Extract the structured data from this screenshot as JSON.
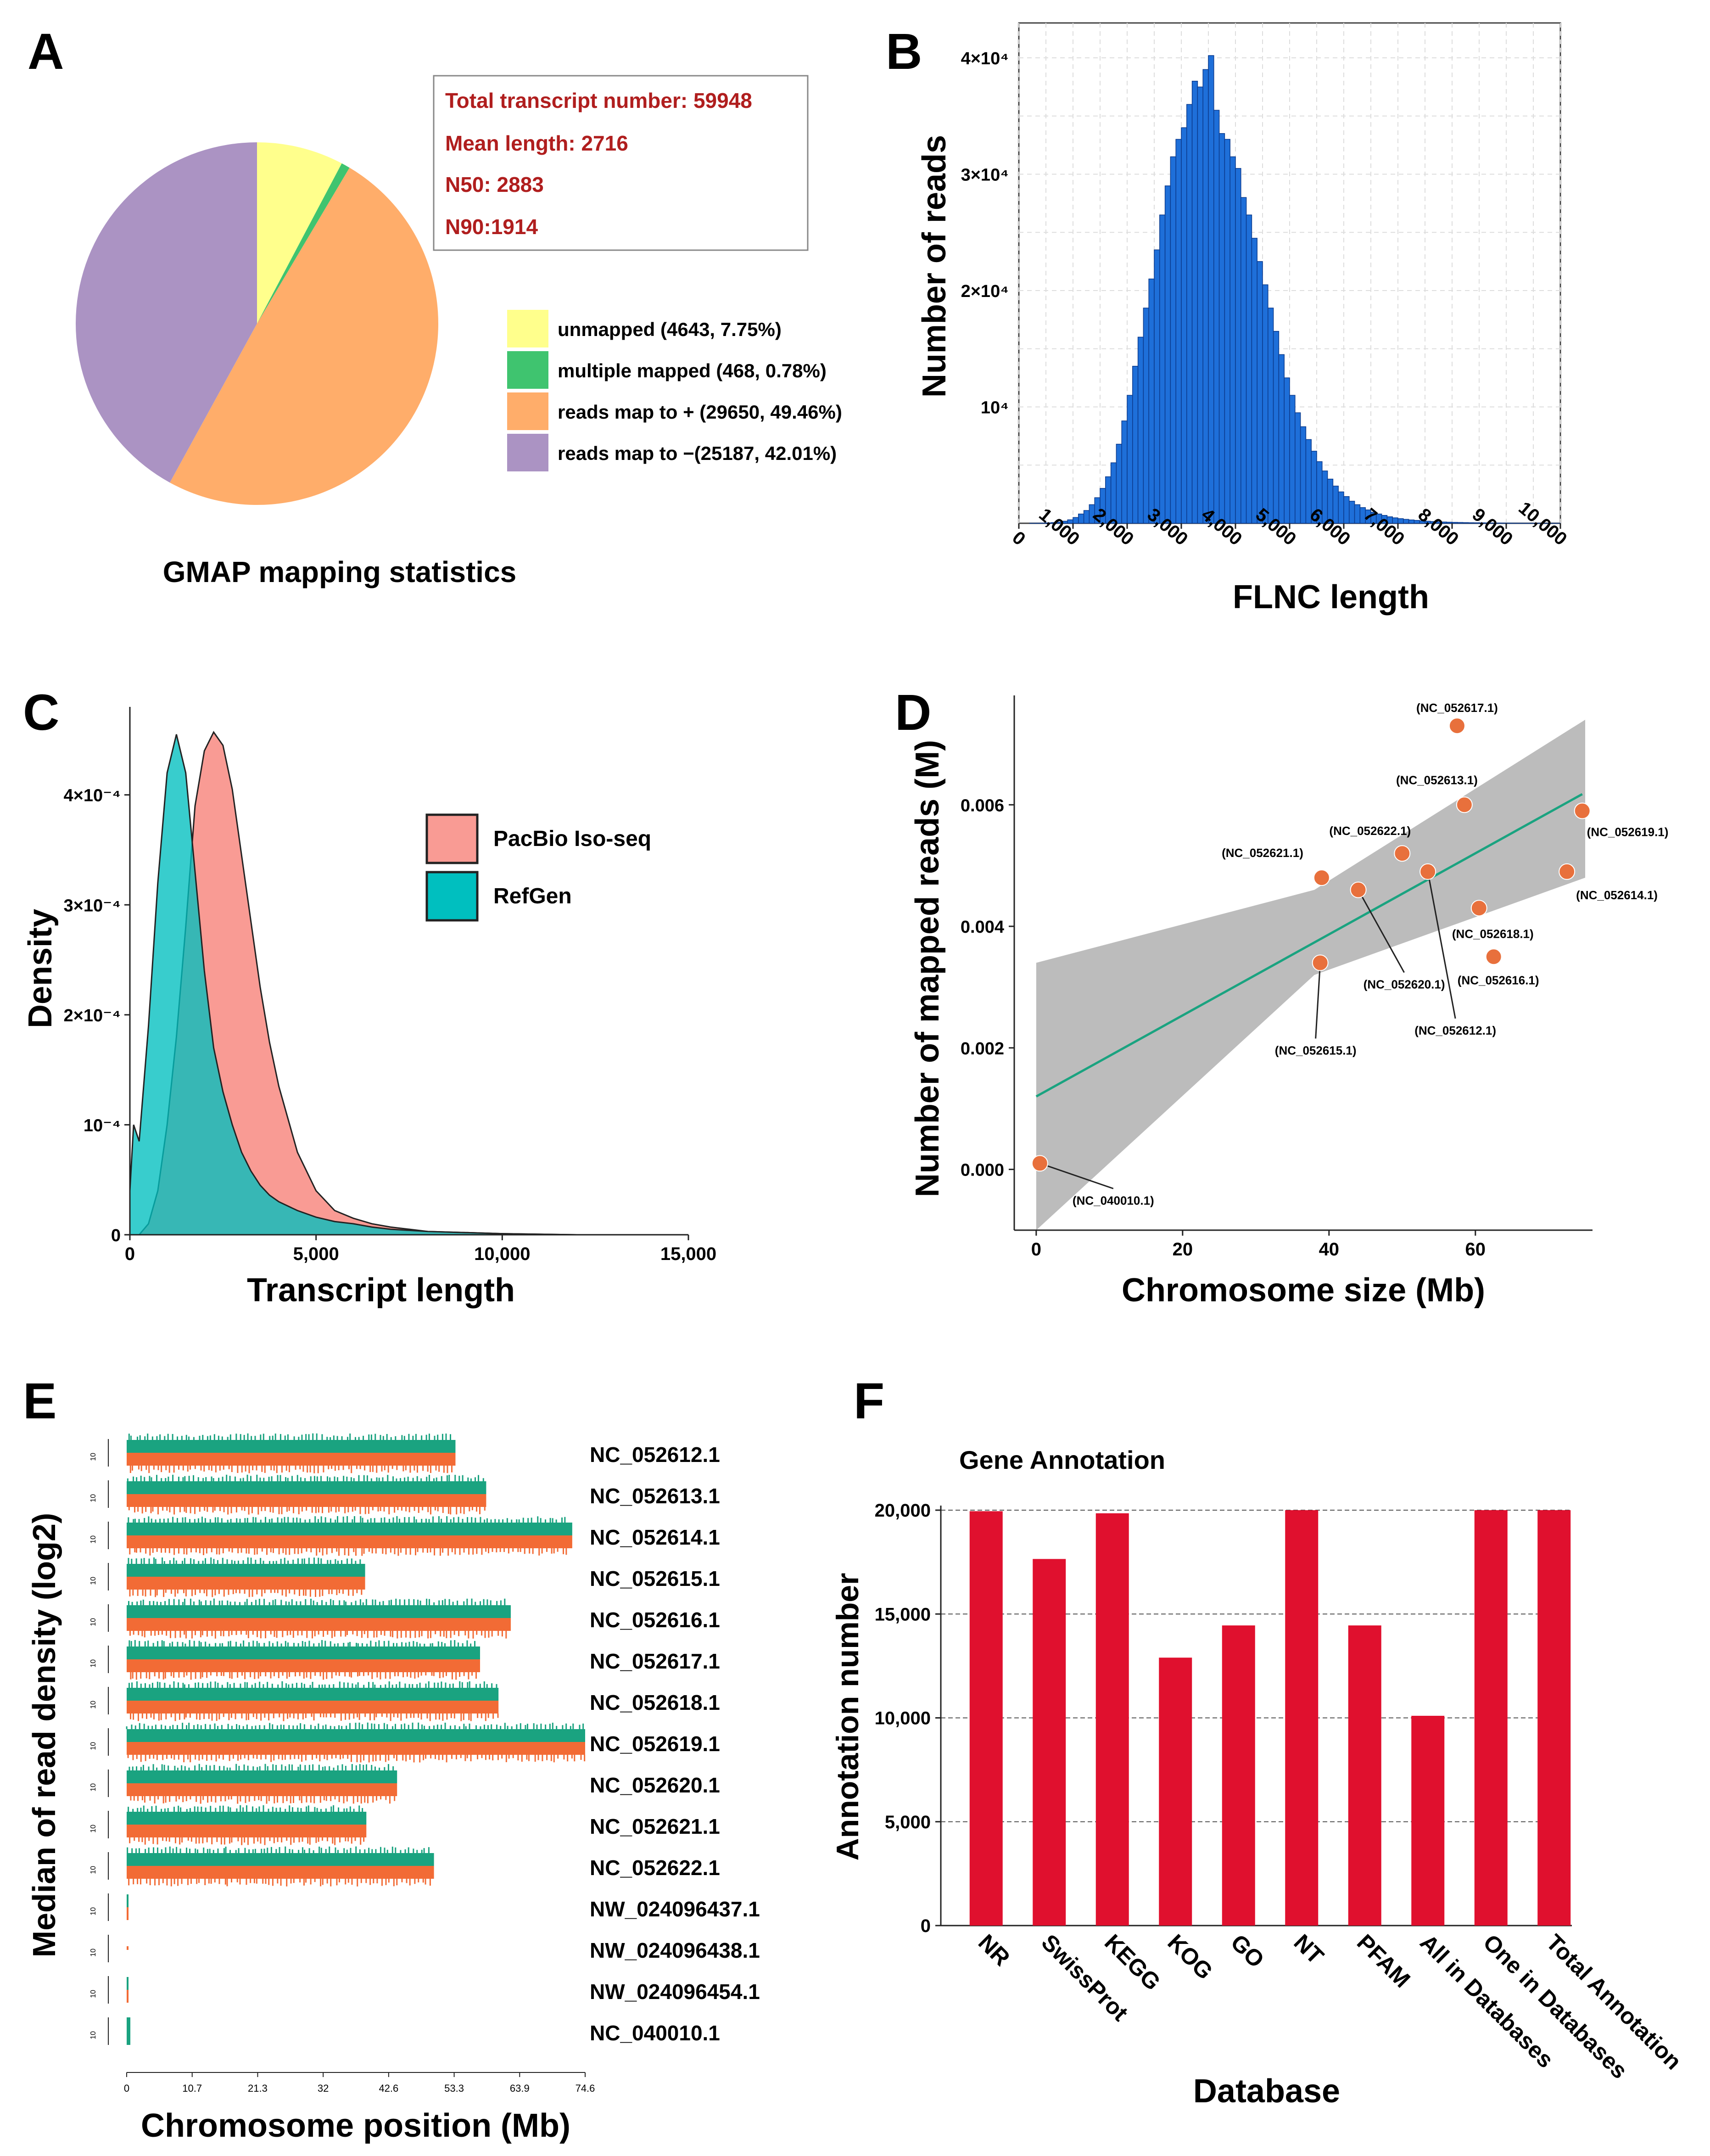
{
  "panels": {
    "A": "A",
    "B": "B",
    "C": "C",
    "D": "D",
    "E": "E",
    "F": "F"
  },
  "panel_a": {
    "stats": [
      "Total transcript number: 59948",
      "Mean length: 2716",
      "N50: 2883",
      "N90:1914"
    ],
    "stats_color": "#b01e1e",
    "caption": "GMAP mapping statistics"
  },
  "chart_data": [
    {
      "panel": "A",
      "type": "pie",
      "labels": [
        "unmapped (4643, 7.75%)",
        "multiple mapped (468, 0.78%)",
        "reads map to + (29650, 49.46%)",
        "reads map to −(25187, 42.01%)"
      ],
      "values": [
        4643,
        468,
        29650,
        25187
      ],
      "percents": [
        7.75,
        0.78,
        49.46,
        42.01
      ],
      "colors": [
        "#ffff8c",
        "#3fc46f",
        "#ffad6a",
        "#ab93c3"
      ],
      "title": "GMAP mapping statistics"
    },
    {
      "panel": "B",
      "type": "bar",
      "xlabel": "FLNC length",
      "ylabel": "Number of reads",
      "xlim": [
        0,
        10000
      ],
      "ylim": [
        0,
        43000
      ],
      "xticks": [
        "0",
        "1,000",
        "2,000",
        "3,000",
        "4,000",
        "5,000",
        "6,000",
        "7,000",
        "8,000",
        "9,000",
        "10,000"
      ],
      "yticks": [
        {
          "value": 10000,
          "label": "10⁴"
        },
        {
          "value": 20000,
          "label": "2×10⁴"
        },
        {
          "value": 30000,
          "label": "3×10⁴"
        },
        {
          "value": 40000,
          "label": "4×10⁴"
        }
      ],
      "bin_width": 100,
      "values": [
        0,
        0,
        5,
        10,
        20,
        40,
        60,
        100,
        180,
        300,
        500,
        800,
        1100,
        1600,
        2200,
        3000,
        4000,
        5200,
        6800,
        8800,
        11000,
        13500,
        16000,
        18500,
        21000,
        23500,
        26500,
        29000,
        31500,
        33000,
        34000,
        36000,
        38000,
        37500,
        39000,
        40200,
        35500,
        33500,
        33000,
        31500,
        30500,
        28000,
        26500,
        24500,
        22500,
        20500,
        18500,
        16500,
        14500,
        12500,
        11000,
        9500,
        8300,
        7200,
        6200,
        5300,
        4500,
        3800,
        3200,
        2700,
        2300,
        1900,
        1600,
        1350,
        1150,
        950,
        800,
        680,
        560,
        470,
        400,
        340,
        290,
        250,
        210,
        180,
        150,
        130,
        110,
        95,
        80,
        70,
        60,
        50,
        45,
        40,
        35,
        30,
        25,
        20,
        15,
        12,
        10,
        8,
        6,
        5,
        4,
        3,
        2,
        1
      ],
      "color": "#1e6fd9"
    },
    {
      "panel": "C",
      "type": "area",
      "xlabel": "Transcript length",
      "ylabel": "Density",
      "xlim": [
        0,
        15000
      ],
      "ylim": [
        0,
        0.00048
      ],
      "xticks": [
        "0",
        "5,000",
        "10,000",
        "15,000"
      ],
      "yticks": [
        {
          "value": 0,
          "label": "0"
        },
        {
          "value": 0.0001,
          "label": "10⁻⁴"
        },
        {
          "value": 0.0002,
          "label": "2×10⁻⁴"
        },
        {
          "value": 0.0003,
          "label": "3×10⁻⁴"
        },
        {
          "value": 0.0004,
          "label": "4×10⁻⁴"
        }
      ],
      "x": [
        0,
        100,
        250,
        500,
        750,
        1000,
        1250,
        1500,
        1750,
        2000,
        2250,
        2500,
        2750,
        3000,
        3250,
        3500,
        3750,
        4000,
        4500,
        5000,
        5500,
        6000,
        6500,
        7000,
        7500,
        8000,
        9000,
        10000,
        12000,
        15000
      ],
      "series": [
        {
          "name": "PacBio Iso-seq",
          "color": "#f99b94",
          "values": [
            0,
            0.0,
            0.0,
            1e-05,
            4e-05,
            0.0001,
            0.00018,
            0.00028,
            0.00039,
            0.00044,
            0.000457,
            0.000445,
            0.000405,
            0.000345,
            0.000285,
            0.000225,
            0.000175,
            0.000135,
            7.5e-05,
            4e-05,
            2.2e-05,
            1.5e-05,
            1e-05,
            7e-06,
            5e-06,
            3e-06,
            2e-06,
            1e-06,
            0,
            0
          ]
        },
        {
          "name": "RefGen",
          "color": "#00bfbf",
          "values": [
            4e-05,
            0.0001,
            8.5e-05,
            0.00019,
            0.00032,
            0.00042,
            0.000455,
            0.00042,
            0.00033,
            0.00024,
            0.00017,
            0.00013,
            0.0001,
            7.5e-05,
            5.8e-05,
            4.5e-05,
            3.6e-05,
            3e-05,
            2.2e-05,
            1.6e-05,
            1.2e-05,
            1e-05,
            7e-06,
            5e-06,
            4e-06,
            3e-06,
            2e-06,
            1e-06,
            0,
            0
          ]
        }
      ]
    },
    {
      "panel": "D",
      "type": "scatter",
      "xlabel": "Chromosome size (Mb)",
      "ylabel": "Number of mapped reads (M)",
      "xlim": [
        -3,
        76
      ],
      "ylim": [
        -0.001,
        0.0078
      ],
      "xticks": [
        "0",
        "20",
        "40",
        "60"
      ],
      "yticks": [
        "0.000",
        "0.002",
        "0.004",
        "0.006"
      ],
      "points": [
        {
          "label": "(NC_052617.1)",
          "x": 57.5,
          "y": 0.0073
        },
        {
          "label": "(NC_052613.1)",
          "x": 58.5,
          "y": 0.006
        },
        {
          "label": "(NC_052619.1)",
          "x": 74.6,
          "y": 0.0059
        },
        {
          "label": "(NC_052622.1)",
          "x": 50.0,
          "y": 0.0052
        },
        {
          "label": "(NC_052621.1)",
          "x": 39.0,
          "y": 0.0048
        },
        {
          "label": "(NC_052612.1)",
          "x": 53.5,
          "y": 0.0049
        },
        {
          "label": "(NC_052614.1)",
          "x": 72.5,
          "y": 0.0049
        },
        {
          "label": "(NC_052620.1)",
          "x": 44.0,
          "y": 0.0046
        },
        {
          "label": "(NC_052618.1)",
          "x": 60.5,
          "y": 0.0043
        },
        {
          "label": "(NC_052616.1)",
          "x": 62.5,
          "y": 0.0035
        },
        {
          "label": "(NC_052615.1)",
          "x": 38.8,
          "y": 0.0034
        },
        {
          "label": "(NC_040010.1)",
          "x": 0.5,
          "y": 0.0001
        }
      ],
      "fit": {
        "intercept": 0.0012,
        "slope": 6.67e-05,
        "band_lower": [
          [
            0,
            -0.001
          ],
          [
            38,
            0.0032
          ],
          [
            75,
            0.0048
          ]
        ],
        "band_upper": [
          [
            0,
            0.0034
          ],
          [
            38,
            0.0046
          ],
          [
            75,
            0.0074
          ]
        ]
      },
      "line_color": "#1aa380",
      "point_color": "#e8703c"
    },
    {
      "panel": "E",
      "type": "heatmap",
      "xlabel": "Chromosome position (Mb)",
      "ylabel": "Median of read density (log2)",
      "xlim": [
        0,
        74.6
      ],
      "xticks": [
        "0",
        "10.7",
        "21.3",
        "32",
        "42.6",
        "53.3",
        "63.9",
        "74.6"
      ],
      "track_ticks": [
        "-15",
        "10"
      ],
      "chromosomes": [
        {
          "name": "NC_052612.1",
          "length": 53.5
        },
        {
          "name": "NC_052613.1",
          "length": 58.5
        },
        {
          "name": "NC_052614.1",
          "length": 72.5
        },
        {
          "name": "NC_052615.1",
          "length": 38.8
        },
        {
          "name": "NC_052616.1",
          "length": 62.5
        },
        {
          "name": "NC_052617.1",
          "length": 57.5
        },
        {
          "name": "NC_052618.1",
          "length": 60.5
        },
        {
          "name": "NC_052619.1",
          "length": 74.6
        },
        {
          "name": "NC_052620.1",
          "length": 44.0
        },
        {
          "name": "NC_052621.1",
          "length": 39.0
        },
        {
          "name": "NC_052622.1",
          "length": 50.0
        },
        {
          "name": "NW_024096437.1",
          "length": 0.3
        },
        {
          "name": "NW_024096438.1",
          "length": 0.2
        },
        {
          "name": "NW_024096454.1",
          "length": 0.3
        },
        {
          "name": "NC_040010.1",
          "length": 0.5
        }
      ],
      "colors": {
        "upper": "#1aa380",
        "lower": "#f26b35"
      }
    },
    {
      "panel": "F",
      "type": "bar",
      "title": "Gene Annotation",
      "xlabel": "Database",
      "ylabel": "Annotation number",
      "ylim": [
        0,
        20000
      ],
      "yticks": [
        "0",
        "5,000",
        "10,000",
        "15,000",
        "20,000"
      ],
      "categories": [
        "NR",
        "SwissProt",
        "KEGG",
        "KOG",
        "GO",
        "NT",
        "PFAM",
        "All in Databases",
        "One in Databases",
        "Total Annotation"
      ],
      "values": [
        19950,
        17650,
        19850,
        12900,
        14450,
        20000,
        14450,
        10100,
        20000,
        20000
      ],
      "color": "#e0102e"
    }
  ]
}
